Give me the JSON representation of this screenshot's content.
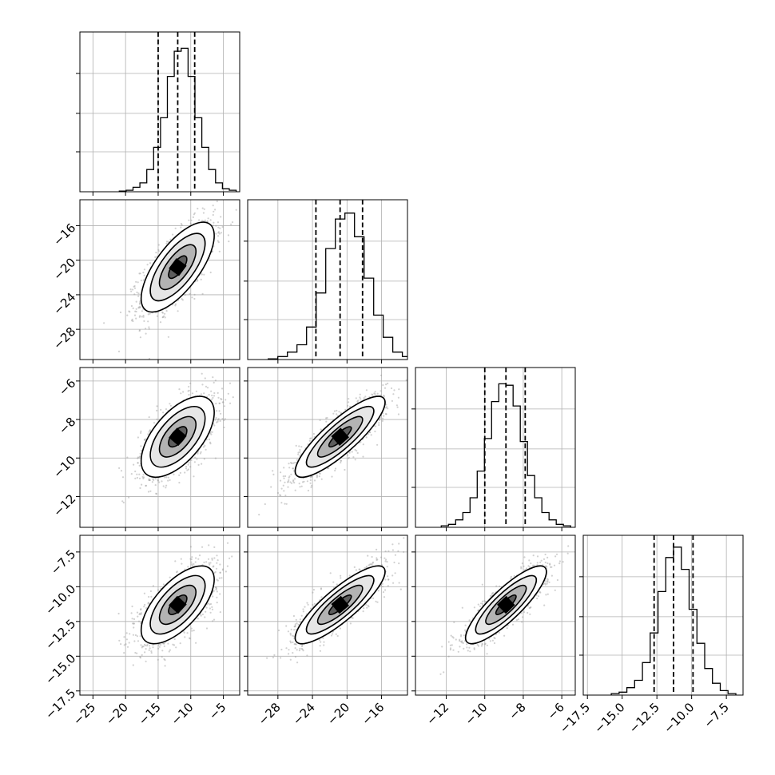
{
  "chart_data": {
    "type": "corner",
    "n_params": 4,
    "params": [
      {
        "mean": -12.0,
        "sigma": 2.8,
        "q16": -15.0,
        "q50": -12.0,
        "q84": -9.4,
        "xlim": [
          -27.0,
          -2.5
        ],
        "ticks": [
          -25,
          -20,
          -15,
          -10,
          -5
        ],
        "tick_labels": [
          "−25",
          "−20",
          "−15",
          "−10",
          "−5"
        ]
      },
      {
        "mean": -20.8,
        "sigma": 2.6,
        "q16": -23.6,
        "q50": -20.8,
        "q84": -18.2,
        "xlim": [
          -31.5,
          -13.0
        ],
        "ticks": [
          -28,
          -24,
          -20,
          -16
        ],
        "tick_labels": [
          "−28",
          "−24",
          "−20",
          "−16"
        ]
      },
      {
        "mean": -8.9,
        "sigma": 1.05,
        "q16": -10.0,
        "q50": -8.9,
        "q84": -7.9,
        "xlim": [
          -13.6,
          -5.3
        ],
        "ticks": [
          -12,
          -10,
          -8,
          -6
        ],
        "tick_labels": [
          "−12",
          "−10",
          "−8",
          "−6"
        ]
      },
      {
        "mean": -11.3,
        "sigma": 1.4,
        "q16": -12.7,
        "q50": -11.3,
        "q84": -9.9,
        "xlim": [
          -17.8,
          -6.3
        ],
        "ticks": [
          -17.5,
          -15.0,
          -12.5,
          -10.0,
          -7.5
        ],
        "tick_labels": [
          "−17.5",
          "−15.0",
          "−12.5",
          "−10.0",
          "−7.5"
        ]
      }
    ],
    "correlation": [
      [
        1.0,
        0.7,
        0.6,
        0.65
      ],
      [
        0.7,
        1.0,
        0.85,
        0.85
      ],
      [
        0.6,
        0.85,
        1.0,
        0.85
      ],
      [
        0.65,
        0.85,
        0.85,
        1.0
      ]
    ],
    "histogram_shape": [
      [
        0.005,
        0.01,
        0.03,
        0.06,
        0.15,
        0.3,
        0.5,
        0.78,
        0.95,
        0.97,
        0.78,
        0.5,
        0.3,
        0.15,
        0.06,
        0.02,
        0.01
      ],
      [
        0.005,
        0.02,
        0.05,
        0.1,
        0.22,
        0.45,
        0.75,
        0.95,
        0.99,
        0.83,
        0.55,
        0.3,
        0.15,
        0.05,
        0.02
      ],
      [
        0.01,
        0.02,
        0.05,
        0.1,
        0.2,
        0.38,
        0.6,
        0.85,
        0.97,
        0.96,
        0.82,
        0.58,
        0.35,
        0.2,
        0.1,
        0.05,
        0.02,
        0.01
      ],
      [
        0.01,
        0.02,
        0.05,
        0.1,
        0.22,
        0.42,
        0.7,
        0.93,
        1.0,
        0.85,
        0.58,
        0.35,
        0.18,
        0.08,
        0.03,
        0.01
      ]
    ],
    "contour_levels_sigma": [
      0.5,
      1.0,
      1.5,
      2.0
    ],
    "dashed_lines": "quantiles 0.16 / 0.50 / 0.84",
    "grid": true,
    "scatter_color": "#999999",
    "line_color": "#000000"
  }
}
